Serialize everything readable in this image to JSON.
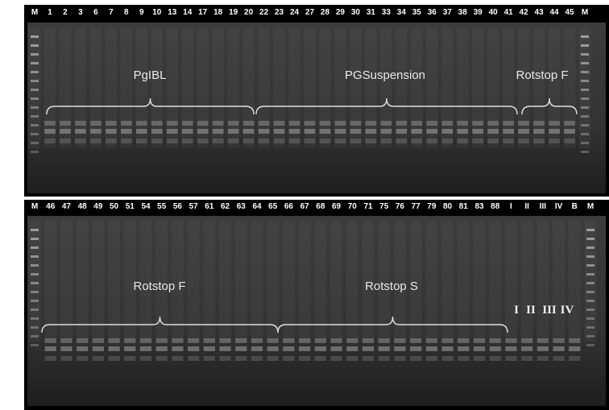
{
  "top_gel": {
    "lanes": [
      "M",
      "1",
      "2",
      "3",
      "6",
      "7",
      "8",
      "9",
      "10",
      "13",
      "14",
      "17",
      "18",
      "19",
      "20",
      "22",
      "23",
      "24",
      "27",
      "28",
      "29",
      "30",
      "31",
      "33",
      "34",
      "35",
      "36",
      "37",
      "38",
      "39",
      "40",
      "41",
      "42",
      "43",
      "44",
      "45",
      "M"
    ],
    "groups": [
      "PgIBL",
      "PGSuspension",
      "Rotstop F"
    ]
  },
  "bottom_gel": {
    "lanes": [
      "M",
      "46",
      "47",
      "48",
      "49",
      "50",
      "51",
      "54",
      "55",
      "56",
      "57",
      "61",
      "62",
      "63",
      "64",
      "65",
      "66",
      "67",
      "68",
      "69",
      "70",
      "71",
      "75",
      "76",
      "77",
      "79",
      "80",
      "81",
      "83",
      "88",
      "I",
      "II",
      "III",
      "IV",
      "B",
      "M"
    ],
    "groups": [
      "Rotstop F",
      "Rotstop S"
    ],
    "controls": [
      "I",
      "II",
      "III",
      "IV"
    ]
  }
}
